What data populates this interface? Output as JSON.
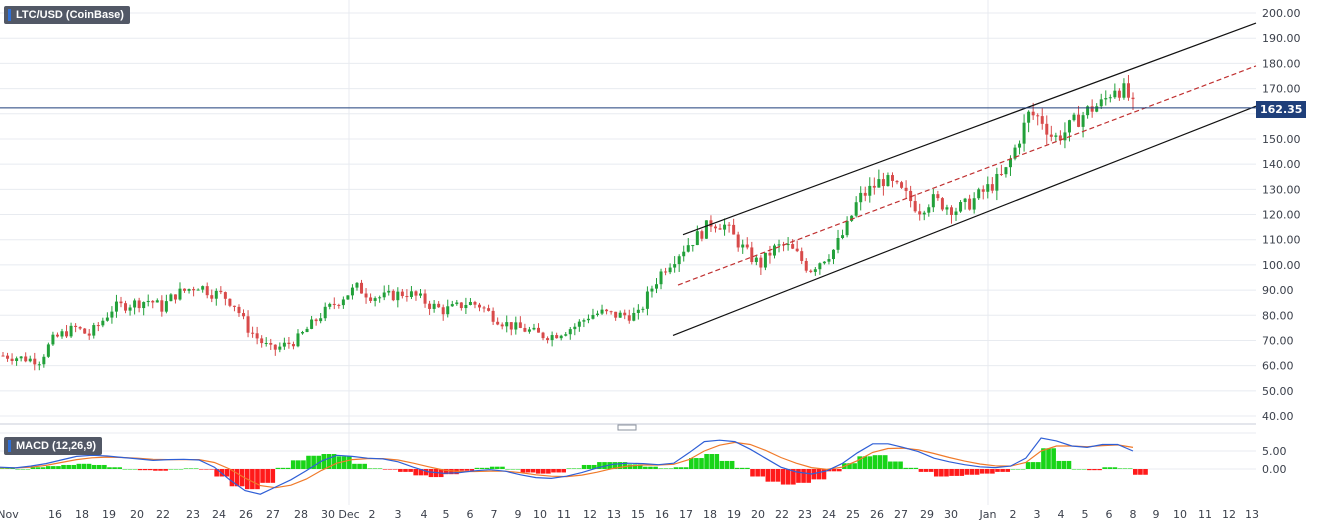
{
  "header": {
    "symbol_label": "LTC/USD (CoinBase)"
  },
  "macd": {
    "label": "MACD (12,26,9)"
  },
  "current_price": {
    "label": "162.35",
    "value": 162.35
  },
  "colors": {
    "up": "#22a03a",
    "down": "#d84a4a",
    "grid": "#e8ebf0",
    "price_line": "#1f3f7a",
    "macd_line": "#2f5fd6",
    "signal_line": "#f07a2a",
    "hist_pos": "#18d418",
    "hist_neg": "#ff1a1a",
    "channel": "#111111",
    "mid_channel": "#c03030"
  },
  "chart_data": [
    {
      "type": "candlestick",
      "title": "LTC/USD (CoinBase)",
      "ylim": [
        40,
        200
      ],
      "y_ticks": [
        "200.00",
        "190.00",
        "180.00",
        "170.00",
        "160.00",
        "150.00",
        "140.00",
        "130.00",
        "120.00",
        "110.00",
        "100.00",
        "90.00",
        "80.00",
        "70.00",
        "60.00",
        "50.00",
        "40.00"
      ],
      "x_ticks": [
        "Nov",
        "16",
        "18",
        "19",
        "20",
        "22",
        "23",
        "24",
        "26",
        "27",
        "28",
        "30",
        "Dec",
        "2",
        "3",
        "4",
        "5",
        "6",
        "7",
        "9",
        "10",
        "11",
        "12",
        "13",
        "15",
        "16",
        "17",
        "18",
        "19",
        "20",
        "22",
        "23",
        "24",
        "25",
        "26",
        "27",
        "29",
        "30",
        "Jan",
        "2",
        "3",
        "4",
        "5",
        "6",
        "8",
        "9",
        "10",
        "11",
        "12",
        "13"
      ],
      "price_path": [
        [
          0,
          64
        ],
        [
          3,
          63
        ],
        [
          6,
          62
        ],
        [
          8,
          70
        ],
        [
          10,
          73
        ],
        [
          12,
          75
        ],
        [
          14,
          72
        ],
        [
          16,
          77
        ],
        [
          18,
          83
        ],
        [
          20,
          84
        ],
        [
          22,
          85
        ],
        [
          24,
          86
        ],
        [
          26,
          83
        ],
        [
          28,
          88
        ],
        [
          30,
          90
        ],
        [
          32,
          92
        ],
        [
          34,
          89
        ],
        [
          36,
          88
        ],
        [
          38,
          84
        ],
        [
          40,
          75
        ],
        [
          42,
          70
        ],
        [
          44,
          66
        ],
        [
          46,
          68
        ],
        [
          48,
          70
        ],
        [
          50,
          75
        ],
        [
          52,
          80
        ],
        [
          54,
          84
        ],
        [
          56,
          88
        ],
        [
          58,
          91
        ],
        [
          60,
          88
        ],
        [
          62,
          87
        ],
        [
          64,
          88
        ],
        [
          66,
          89
        ],
        [
          68,
          87
        ],
        [
          70,
          84
        ],
        [
          72,
          82
        ],
        [
          74,
          83
        ],
        [
          76,
          85
        ],
        [
          78,
          84
        ],
        [
          80,
          80
        ],
        [
          82,
          77
        ],
        [
          84,
          75
        ],
        [
          86,
          74
        ],
        [
          88,
          72
        ],
        [
          90,
          72
        ],
        [
          92,
          74
        ],
        [
          94,
          76
        ],
        [
          96,
          80
        ],
        [
          98,
          81
        ],
        [
          100,
          80
        ],
        [
          102,
          80
        ],
        [
          104,
          80
        ],
        [
          106,
          90
        ],
        [
          108,
          98
        ],
        [
          110,
          103
        ],
        [
          112,
          108
        ],
        [
          114,
          112
        ],
        [
          116,
          117
        ],
        [
          118,
          116
        ],
        [
          120,
          110
        ],
        [
          122,
          104
        ],
        [
          124,
          100
        ],
        [
          126,
          106
        ],
        [
          128,
          108
        ],
        [
          130,
          104
        ],
        [
          132,
          98
        ],
        [
          134,
          102
        ],
        [
          136,
          106
        ],
        [
          138,
          114
        ],
        [
          140,
          126
        ],
        [
          142,
          130
        ],
        [
          144,
          134
        ],
        [
          146,
          131
        ],
        [
          148,
          127
        ],
        [
          150,
          122
        ],
        [
          152,
          126
        ],
        [
          154,
          124
        ],
        [
          156,
          122
        ],
        [
          158,
          124
        ],
        [
          160,
          128
        ],
        [
          162,
          132
        ],
        [
          164,
          136
        ],
        [
          166,
          148
        ],
        [
          168,
          160
        ],
        [
          170,
          158
        ],
        [
          172,
          150
        ],
        [
          174,
          153
        ],
        [
          176,
          158
        ],
        [
          178,
          162
        ],
        [
          180,
          164
        ],
        [
          182,
          171
        ],
        [
          184,
          168
        ],
        [
          185,
          162.35
        ]
      ],
      "current": 162.35
    },
    {
      "type": "line",
      "title": "MACD (12,26,9)",
      "ylim": [
        -10,
        10
      ],
      "y_ticks": [
        "5.00",
        "0.00"
      ],
      "series": [
        {
          "name": "MACD",
          "values": [
            0.5,
            0.3,
            0.8,
            1.5,
            2.5,
            3.5,
            3.8,
            3.6,
            3.2,
            2.8,
            2.4,
            2.6,
            2.7,
            2.5,
            0.5,
            -3,
            -6,
            -7,
            -5,
            -3,
            -0.5,
            2.2,
            3.8,
            3.5,
            3.0,
            2.8,
            2.0,
            0.5,
            -0.8,
            -1.2,
            -1.0,
            -0.5,
            -0.2,
            -0.6,
            -1.6,
            -2.4,
            -2.6,
            -2.0,
            -1.0,
            0.3,
            1.3,
            1.6,
            1.5,
            1.2,
            1.6,
            4.5,
            7.6,
            8.0,
            7.6,
            5.5,
            3.0,
            0.5,
            -0.8,
            -1.4,
            -0.5,
            1.5,
            4.5,
            7.0,
            7.0,
            6.0,
            4.8,
            3.0,
            2.0,
            1.2,
            0.6,
            0.4,
            0.8,
            3.0,
            8.6,
            7.8,
            6.4,
            6.0,
            6.8,
            6.8,
            5.0
          ]
        },
        {
          "name": "Signal",
          "values": [
            0.4,
            0.3,
            0.5,
            1.0,
            1.8,
            2.6,
            3.1,
            3.3,
            3.2,
            3.0,
            2.7,
            2.6,
            2.6,
            2.6,
            1.8,
            0,
            -2.5,
            -4.6,
            -5.2,
            -4.5,
            -2.8,
            -0.4,
            1.6,
            2.6,
            2.9,
            2.9,
            2.5,
            1.6,
            0.6,
            -0.3,
            -0.7,
            -0.7,
            -0.6,
            -0.6,
            -1.0,
            -1.6,
            -2.0,
            -2.1,
            -1.7,
            -0.9,
            0.1,
            0.8,
            1.1,
            1.1,
            1.3,
            2.6,
            5.0,
            6.6,
            7.4,
            6.8,
            5.2,
            3.2,
            1.6,
            0.4,
            -0.1,
            0.5,
            2.3,
            4.6,
            5.7,
            5.8,
            5.3,
            4.3,
            3.2,
            2.2,
            1.4,
            0.9,
            0.8,
            1.8,
            5.0,
            6.4,
            6.4,
            6.2,
            6.5,
            6.7,
            6.0
          ]
        }
      ]
    }
  ]
}
